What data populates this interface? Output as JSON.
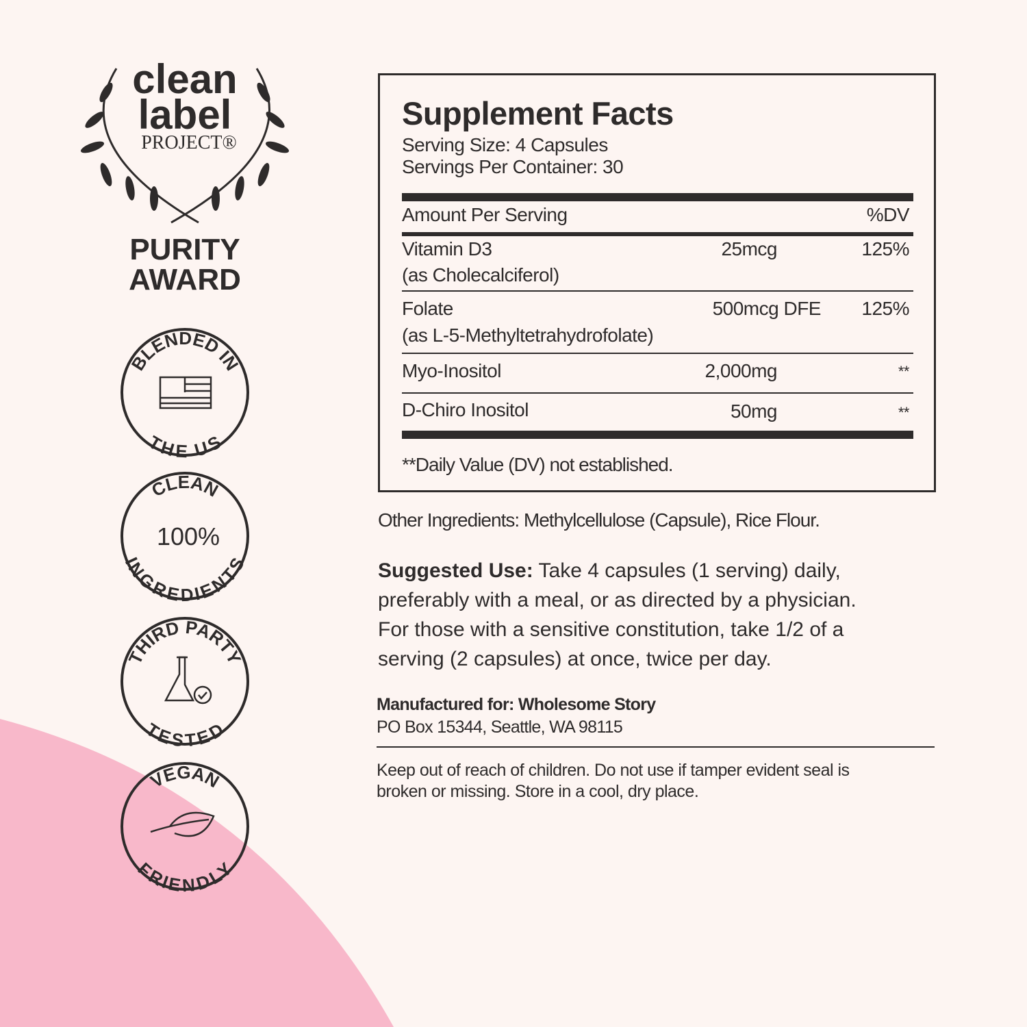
{
  "badges": {
    "clean_label": {
      "line1": "clean",
      "line2": "label",
      "line3": "PROJECT®",
      "award1": "PURITY",
      "award2": "AWARD"
    },
    "blended": {
      "top": "BLENDED IN",
      "bottom": "THE US",
      "icon": "us-flag-icon"
    },
    "clean": {
      "top": "CLEAN",
      "center": "100%",
      "bottom": "INGREDIENTS"
    },
    "tested": {
      "top": "THIRD PARTY",
      "bottom": "TESTED",
      "icon": "flask-check-icon"
    },
    "vegan": {
      "top": "VEGAN",
      "bottom": "FRIENDLY",
      "icon": "leaf-icon"
    }
  },
  "facts": {
    "title": "Supplement Facts",
    "serving_size": "Serving Size: 4 Capsules",
    "servings_per": "Servings Per Container: 30",
    "header_amount": "Amount Per Serving",
    "header_dv": "%DV",
    "rows": [
      {
        "name": "Vitamin D3",
        "sub": "(as Cholecalciferol)",
        "amount": "25mcg",
        "dv": "125%"
      },
      {
        "name": "Folate",
        "sub": "(as L-5-Methyltetrahydrofolate)",
        "amount": "500mcg DFE",
        "dv": "125%"
      },
      {
        "name": "Myo-Inositol",
        "amount": "2,000mg",
        "dv": "**"
      },
      {
        "name": "D-Chiro Inositol",
        "amount": "50mg",
        "dv": "**"
      }
    ],
    "footnote": "**Daily Value (DV) not established."
  },
  "other_ingredients": "Other Ingredients: Methylcellulose (Capsule), Rice Flour.",
  "suggested_use": {
    "label": "Suggested Use:",
    "lines": [
      " Take 4 capsules (1 serving) daily,",
      "preferably with a meal, or as directed by a physician.",
      "For those with a sensitive constitution, take 1/2 of a",
      "serving (2 capsules) at once, twice per day."
    ]
  },
  "manufacturer": {
    "label": "Manufactured for: Wholesome Story",
    "address": "PO Box 15344, Seattle, WA 98115"
  },
  "warning": [
    "Keep out of reach of children. Do not use if tamper evident seal is",
    "broken or missing. Store in a cool, dry place."
  ],
  "colors": {
    "background": "#fdf5f2",
    "pink": "#f8b8ca",
    "ink": "#2e2b2b"
  }
}
